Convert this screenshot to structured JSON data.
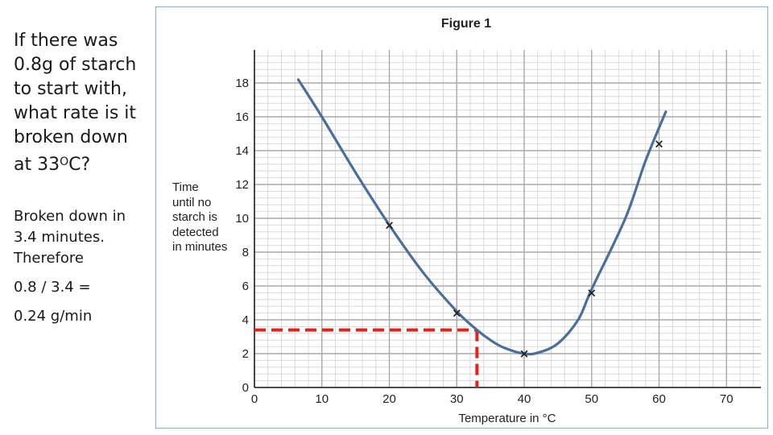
{
  "left_text": {
    "question": "If there was 0.8g of starch to start with, what rate is it broken down at 33",
    "question_degree": "O",
    "question_end": "C?",
    "answer_line1": "Broken down in 3.4 minutes. Therefore",
    "answer_line2": "0.8 / 3.4 =",
    "answer_line3": "0.24 g/min"
  },
  "chart_data": {
    "type": "line",
    "title": "Figure 1",
    "xlabel": "Temperature in °C",
    "ylabel": [
      "Time",
      "until no",
      "starch is",
      "detected",
      "in minutes"
    ],
    "xlim": [
      0,
      75
    ],
    "ylim": [
      0,
      20
    ],
    "xticks": [
      0,
      10,
      20,
      30,
      40,
      50,
      60,
      70
    ],
    "yticks": [
      0,
      2,
      4,
      6,
      8,
      10,
      12,
      14,
      16,
      18
    ],
    "grid": true,
    "series": [
      {
        "name": "fitted curve",
        "kind": "line",
        "color": "#4a6f98",
        "x": [
          6.5,
          10,
          15,
          20,
          25,
          30,
          33,
          35,
          37,
          40,
          42,
          45,
          48,
          50,
          55,
          58,
          61
        ],
        "y": [
          18.2,
          16.0,
          12.7,
          9.6,
          6.8,
          4.5,
          3.4,
          2.8,
          2.35,
          2.0,
          2.05,
          2.6,
          4.0,
          5.8,
          10.0,
          13.4,
          16.3
        ]
      },
      {
        "name": "measured points",
        "kind": "points",
        "marker": "×",
        "x": [
          20,
          30,
          40,
          50,
          60
        ],
        "y": [
          9.6,
          4.4,
          2.0,
          5.6,
          14.4
        ]
      }
    ],
    "annotation": {
      "type": "dashed-lines",
      "color": "#e0231c",
      "x": 33,
      "y": 3.4
    }
  }
}
